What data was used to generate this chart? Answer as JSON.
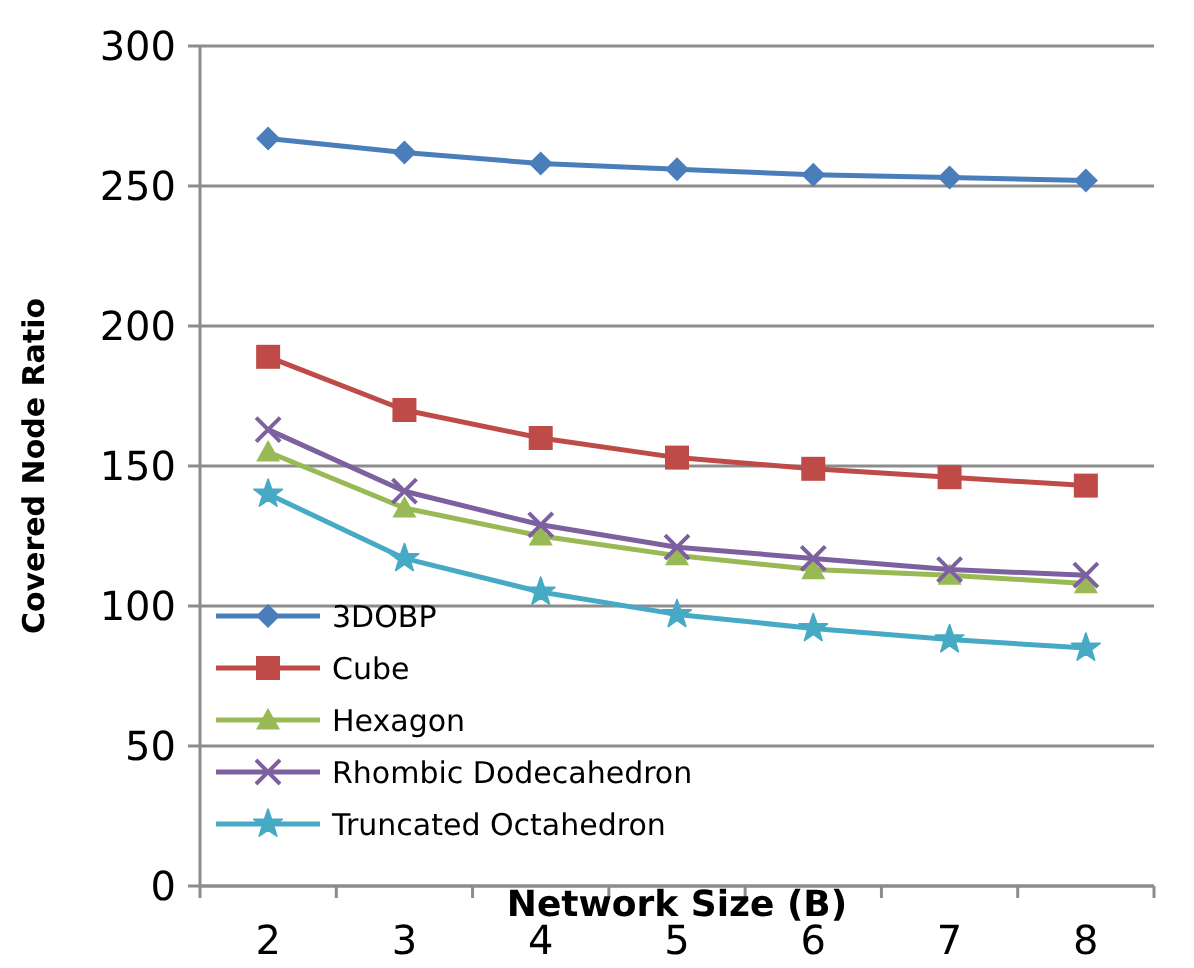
{
  "chart_data": {
    "type": "line",
    "xlabel": "Network Size (B)",
    "ylabel": "Covered Node Ratio",
    "categories": [
      "2",
      "3",
      "4",
      "5",
      "6",
      "7",
      "8"
    ],
    "ylim": [
      0,
      300
    ],
    "yticks": [
      0,
      50,
      100,
      150,
      200,
      250,
      300
    ],
    "grid": "y",
    "legend": "bottom left",
    "series": [
      {
        "name": "3DOBP",
        "color": "#4a7ebb",
        "marker": "diamond",
        "values": [
          267,
          262,
          258,
          256,
          254,
          253,
          252
        ]
      },
      {
        "name": "Cube",
        "color": "#be4b48",
        "marker": "square",
        "values": [
          189,
          170,
          160,
          153,
          149,
          146,
          143
        ]
      },
      {
        "name": "Hexagon",
        "color": "#98b954",
        "marker": "triangle",
        "values": [
          155,
          135,
          125,
          118,
          113,
          111,
          108
        ]
      },
      {
        "name": "Rhombic Dodecahedron",
        "color": "#7d60a0",
        "marker": "cross",
        "values": [
          163,
          141,
          129,
          121,
          117,
          113,
          111
        ]
      },
      {
        "name": "Truncated Octahedron",
        "color": "#46aac5",
        "marker": "star",
        "values": [
          140,
          117,
          105,
          97,
          92,
          88,
          85
        ]
      }
    ]
  }
}
